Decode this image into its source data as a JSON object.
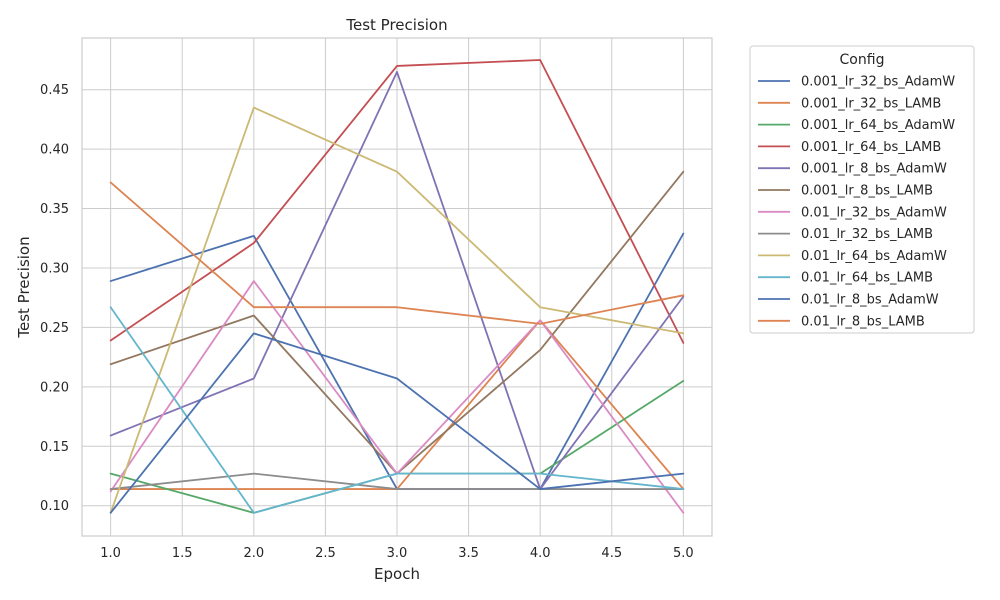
{
  "chart_data": {
    "type": "line",
    "title": "Test Precision",
    "xlabel": "Epoch",
    "ylabel": "Test Precision",
    "xlim": [
      0.8,
      5.2
    ],
    "ylim": [
      0.0745,
      0.4935
    ],
    "xticks": [
      "1.0",
      "1.5",
      "2.0",
      "2.5",
      "3.0",
      "3.5",
      "4.0",
      "4.5",
      "5.0"
    ],
    "yticks": [
      "0.10",
      "0.15",
      "0.20",
      "0.25",
      "0.30",
      "0.35",
      "0.40",
      "0.45"
    ],
    "grid": true,
    "legend_title": "Config",
    "legend_position": "outside-right",
    "x": [
      1,
      2,
      3,
      4,
      5
    ],
    "series": [
      {
        "name": "0.001_lr_32_bs_AdamW",
        "color": "#4c72b0",
        "values": [
          0.289,
          0.327,
          0.114,
          0.114,
          0.329
        ]
      },
      {
        "name": "0.001_lr_32_bs_LAMB",
        "color": "#dd8452",
        "values": [
          0.114,
          0.114,
          0.114,
          0.256,
          0.114
        ]
      },
      {
        "name": "0.001_lr_64_bs_AdamW",
        "color": "#55a868",
        "values": [
          0.127,
          0.094,
          0.127,
          0.127,
          0.205
        ]
      },
      {
        "name": "0.001_lr_64_bs_LAMB",
        "color": "#c44e52",
        "values": [
          0.239,
          0.321,
          0.47,
          0.475,
          0.237
        ]
      },
      {
        "name": "0.001_lr_8_bs_AdamW",
        "color": "#8172b3",
        "values": [
          0.159,
          0.207,
          0.465,
          0.114,
          0.276
        ]
      },
      {
        "name": "0.001_lr_8_bs_LAMB",
        "color": "#937860",
        "values": [
          0.219,
          0.26,
          0.127,
          0.231,
          0.381
        ]
      },
      {
        "name": "0.01_lr_32_bs_AdamW",
        "color": "#da8bc3",
        "values": [
          0.112,
          0.289,
          0.127,
          0.256,
          0.094
        ]
      },
      {
        "name": "0.01_lr_32_bs_LAMB",
        "color": "#8c8c8c",
        "values": [
          0.114,
          0.127,
          0.114,
          0.114,
          0.114
        ]
      },
      {
        "name": "0.01_lr_64_bs_AdamW",
        "color": "#ccb974",
        "values": [
          0.094,
          0.435,
          0.381,
          0.267,
          0.245
        ]
      },
      {
        "name": "0.01_lr_64_bs_LAMB",
        "color": "#64b5cd",
        "values": [
          0.267,
          0.094,
          0.127,
          0.127,
          0.114
        ]
      },
      {
        "name": "0.01_lr_8_bs_AdamW",
        "color": "#4c72b0",
        "values": [
          0.094,
          0.245,
          0.207,
          0.114,
          0.127
        ]
      },
      {
        "name": "0.01_lr_8_bs_LAMB",
        "color": "#dd8452",
        "values": [
          0.372,
          0.267,
          0.267,
          0.253,
          0.277
        ]
      }
    ]
  }
}
